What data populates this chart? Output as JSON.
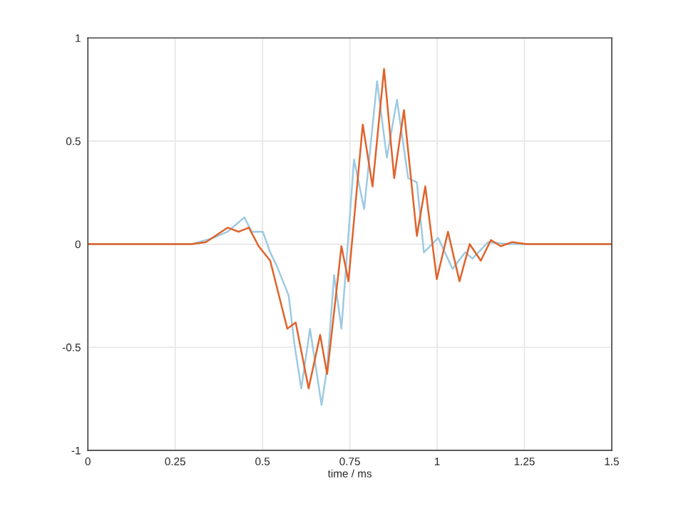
{
  "chart_data": {
    "type": "line",
    "xlabel": "time / ms",
    "series": [
      {
        "color": "#9ecae1",
        "x": [
          0,
          0.298,
          0.359,
          0.4,
          0.448,
          0.469,
          0.501,
          0.522,
          0.542,
          0.575,
          0.591,
          0.611,
          0.636,
          0.669,
          0.685,
          0.705,
          0.726,
          0.762,
          0.791,
          0.828,
          0.856,
          0.885,
          0.917,
          0.942,
          0.962,
          1.003,
          1.044,
          1.08,
          1.101,
          1.146,
          1.203,
          1.5
        ],
        "values": [
          0,
          0,
          0.03,
          0.06,
          0.13,
          0.06,
          0.06,
          -0.04,
          -0.11,
          -0.25,
          -0.48,
          -0.7,
          -0.41,
          -0.78,
          -0.6,
          -0.15,
          -0.41,
          0.41,
          0.17,
          0.79,
          0.42,
          0.7,
          0.32,
          0.3,
          -0.04,
          0.03,
          -0.12,
          -0.04,
          -0.07,
          0.01,
          0,
          0
        ]
      },
      {
        "color": "#e0622a",
        "x": [
          0,
          0.298,
          0.338,
          0.4,
          0.432,
          0.461,
          0.489,
          0.522,
          0.571,
          0.595,
          0.632,
          0.665,
          0.685,
          0.726,
          0.746,
          0.787,
          0.815,
          0.848,
          0.877,
          0.905,
          0.942,
          0.966,
          0.999,
          1.031,
          1.064,
          1.093,
          1.125,
          1.154,
          1.182,
          1.215,
          1.256,
          1.5
        ],
        "values": [
          0,
          0,
          0.01,
          0.08,
          0.06,
          0.08,
          -0.01,
          -0.08,
          -0.41,
          -0.38,
          -0.7,
          -0.44,
          -0.63,
          -0.01,
          -0.18,
          0.58,
          0.28,
          0.85,
          0.32,
          0.65,
          0.04,
          0.28,
          -0.17,
          0.06,
          -0.18,
          0,
          -0.08,
          0.02,
          -0.01,
          0.01,
          0,
          0
        ]
      }
    ],
    "xlim": [
      0,
      1.5
    ],
    "ylim": [
      -1,
      1
    ],
    "xticks": [
      0,
      0.25,
      0.5,
      0.75,
      1,
      1.25,
      1.5
    ],
    "yticks": [
      -1,
      -0.5,
      0,
      0.5,
      1
    ],
    "grid": true,
    "marker": "none",
    "line_style": "solid"
  }
}
